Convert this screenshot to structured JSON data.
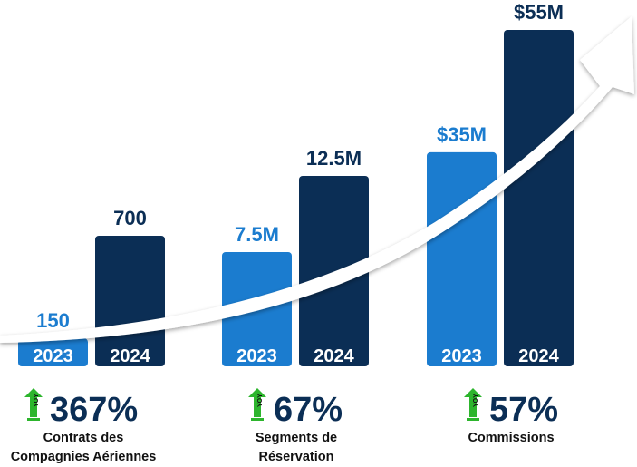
{
  "chart_data": {
    "type": "bar",
    "groups": [
      {
        "category": "Contrats des Compagnies Aériennes",
        "category_lines": [
          "Contrats des",
          "Compagnies Aériennes"
        ],
        "values": [
          150,
          700
        ],
        "value_labels": [
          "150",
          "700"
        ],
        "yoy": "367%"
      },
      {
        "category": "Segments de Réservation",
        "category_lines": [
          "Segments de",
          "Réservation"
        ],
        "values": [
          7.5,
          12.5
        ],
        "value_labels": [
          "7.5M",
          "12.5M"
        ],
        "yoy": "67%"
      },
      {
        "category": "Commissions",
        "category_lines": [
          "Commissions"
        ],
        "values": [
          35,
          55
        ],
        "value_labels": [
          "$35M",
          "$55M"
        ],
        "yoy": "57%"
      }
    ],
    "years": [
      "2023",
      "2024"
    ],
    "yoy_badge": "YOY",
    "colors": {
      "2023": "#1b7ccf",
      "2024": "#0b2e55",
      "yoy_arrow": "#2db52d",
      "label_2023": "#1b7ccf",
      "label_2024": "#0b2e55"
    }
  }
}
